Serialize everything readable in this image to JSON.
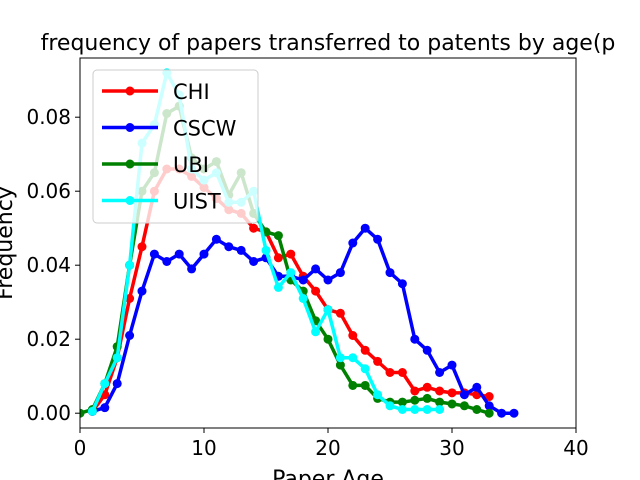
{
  "chart_data": {
    "type": "line",
    "title": "frequency of papers transferred to patents by age(p",
    "xlabel": "Paper Age",
    "ylabel": "Frequency",
    "xlim": [
      0,
      40
    ],
    "ylim": [
      -0.004,
      0.096
    ],
    "xticks": [
      0,
      10,
      20,
      30,
      40
    ],
    "xtick_labels": [
      "0",
      "10",
      "20",
      "30",
      "40"
    ],
    "yticks": [
      0.0,
      0.02,
      0.04,
      0.06,
      0.08
    ],
    "ytick_labels": [
      "0.00",
      "0.02",
      "0.04",
      "0.06",
      "0.08"
    ],
    "grid": false,
    "legend_position": "top-left",
    "series": [
      {
        "name": "CHI",
        "color": "#ff0000",
        "x": [
          1,
          2,
          3,
          4,
          5,
          6,
          7,
          8,
          9,
          10,
          11,
          12,
          13,
          14,
          15,
          16,
          17,
          18,
          19,
          20,
          21,
          22,
          23,
          24,
          25,
          26,
          27,
          28,
          29,
          30,
          31,
          32,
          33
        ],
        "y": [
          0.0005,
          0.005,
          0.015,
          0.031,
          0.045,
          0.06,
          0.066,
          0.066,
          0.064,
          0.061,
          0.058,
          0.055,
          0.054,
          0.05,
          0.049,
          0.042,
          0.043,
          0.037,
          0.033,
          0.028,
          0.027,
          0.021,
          0.017,
          0.014,
          0.011,
          0.011,
          0.006,
          0.007,
          0.006,
          0.0055,
          0.0055,
          0.005,
          0.0045
        ]
      },
      {
        "name": "CSCW",
        "color": "#0000ff",
        "x": [
          1,
          2,
          3,
          4,
          5,
          6,
          7,
          8,
          9,
          10,
          11,
          12,
          13,
          14,
          15,
          16,
          17,
          18,
          19,
          20,
          21,
          22,
          23,
          24,
          25,
          26,
          27,
          28,
          29,
          30,
          31,
          32,
          33,
          34,
          35
        ],
        "y": [
          0.0005,
          0.0015,
          0.008,
          0.021,
          0.033,
          0.043,
          0.041,
          0.043,
          0.039,
          0.043,
          0.047,
          0.045,
          0.044,
          0.041,
          0.042,
          0.037,
          0.037,
          0.036,
          0.039,
          0.036,
          0.038,
          0.046,
          0.05,
          0.047,
          0.038,
          0.035,
          0.02,
          0.017,
          0.011,
          0.013,
          0.005,
          0.007,
          0.002,
          0.0,
          0.0
        ]
      },
      {
        "name": "UBI",
        "color": "#008000",
        "x": [
          0,
          1,
          2,
          3,
          4,
          5,
          6,
          7,
          8,
          9,
          10,
          11,
          12,
          13,
          14,
          15,
          16,
          17,
          18,
          19,
          20,
          21,
          22,
          23,
          24,
          25,
          26,
          27,
          28,
          29,
          30,
          31,
          32,
          33
        ],
        "y": [
          0.0,
          0.001,
          0.008,
          0.018,
          0.04,
          0.06,
          0.065,
          0.081,
          0.083,
          0.069,
          0.066,
          0.068,
          0.059,
          0.065,
          0.054,
          0.049,
          0.048,
          0.036,
          0.033,
          0.025,
          0.02,
          0.013,
          0.0075,
          0.0075,
          0.004,
          0.003,
          0.003,
          0.0035,
          0.004,
          0.003,
          0.0025,
          0.002,
          0.001,
          0.0
        ]
      },
      {
        "name": "UIST",
        "color": "#00ffff",
        "x": [
          1,
          2,
          3,
          4,
          5,
          6,
          7,
          8,
          9,
          10,
          11,
          12,
          13,
          14,
          15,
          16,
          17,
          18,
          19,
          20,
          21,
          22,
          23,
          24,
          25,
          26,
          27,
          28,
          29
        ],
        "y": [
          0.0005,
          0.008,
          0.015,
          0.04,
          0.073,
          0.078,
          0.092,
          0.086,
          0.066,
          0.063,
          0.065,
          0.057,
          0.057,
          0.06,
          0.044,
          0.034,
          0.038,
          0.031,
          0.022,
          0.028,
          0.015,
          0.015,
          0.012,
          0.005,
          0.002,
          0.001,
          0.001,
          0.001,
          0.001
        ]
      }
    ]
  }
}
